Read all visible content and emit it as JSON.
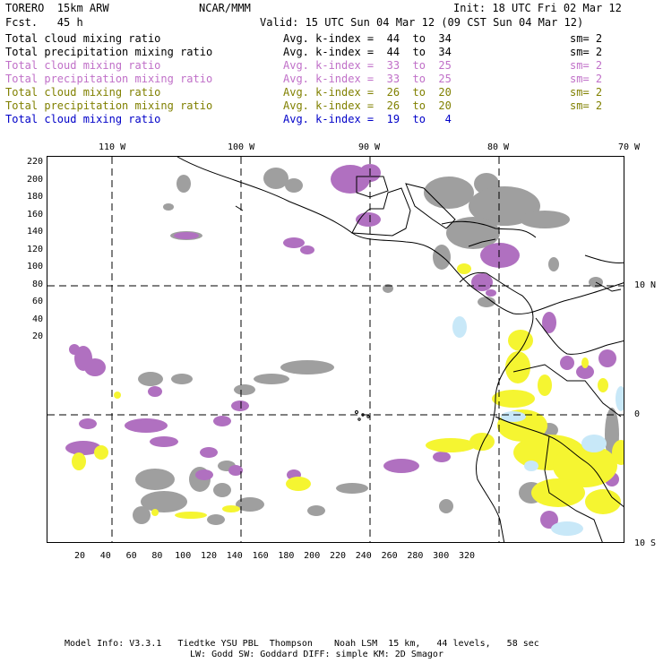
{
  "header": {
    "model": "TORERO  15km ARW",
    "forecast": "Fcst.   45 h",
    "org": "NCAR/MMM",
    "init": "Init: 18 UTC Fri 02 Mar 12",
    "valid": "Valid: 15 UTC Sun 04 Mar 12 (09 CST Sun 04 Mar 12)"
  },
  "legend": [
    {
      "field": "Total cloud mixing ratio",
      "range": "Avg. k-index =  44  to  34",
      "sm": "sm= 2",
      "color": "#000000"
    },
    {
      "field": "Total precipitation mixing ratio",
      "range": "Avg. k-index =  44  to  34",
      "sm": "sm= 2",
      "color": "#000000"
    },
    {
      "field": "Total cloud mixing ratio",
      "range": "Avg. k-index =  33  to  25",
      "sm": "sm= 2",
      "color": "#c070c8"
    },
    {
      "field": "Total precipitation mixing ratio",
      "range": "Avg. k-index =  33  to  25",
      "sm": "sm= 2",
      "color": "#c070c8"
    },
    {
      "field": "Total cloud mixing ratio",
      "range": "Avg. k-index =  26  to  20",
      "sm": "sm= 2",
      "color": "#808000"
    },
    {
      "field": "Total precipitation mixing ratio",
      "range": "Avg. k-index =  26  to  20",
      "sm": "sm= 2",
      "color": "#808000"
    },
    {
      "field": "Total cloud mixing ratio",
      "range": "Avg. k-index =  19  to   4",
      "sm": "",
      "color": "#0000c8"
    }
  ],
  "axes": {
    "lon_labels": [
      "110 W",
      "100 W",
      "90 W",
      "80 W",
      "70 W"
    ],
    "lat_labels": [
      "10 N",
      "0",
      "10 S"
    ],
    "x_ticks": [
      "20",
      "40",
      "60",
      "80",
      "100",
      "120",
      "140",
      "160",
      "180",
      "200",
      "220",
      "240",
      "260",
      "280",
      "300",
      "320"
    ],
    "y_ticks": [
      "220",
      "200",
      "180",
      "160",
      "140",
      "120",
      "100",
      "80",
      "60",
      "40",
      "20"
    ]
  },
  "footer": {
    "line1": "Model Info: V3.3.1   Tiedtke YSU PBL  Thompson    Noah LSM  15 km,   44 levels,   58 sec",
    "line2": "LW: Godd SW: Goddard DIFF: simple KM: 2D Smagor"
  },
  "colors": {
    "gray": "#9a9a9a",
    "magenta": "#b070c0",
    "yellow": "#f5f531",
    "lightblue": "#c8e8f8"
  }
}
